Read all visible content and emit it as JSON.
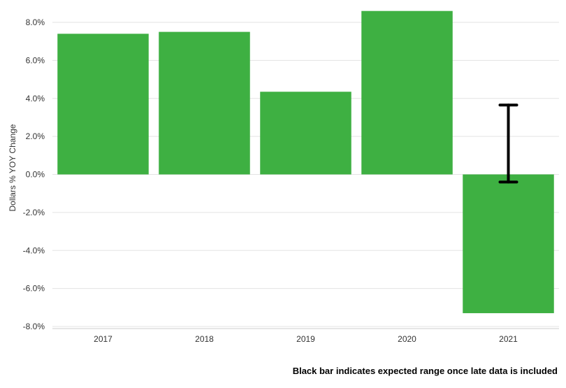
{
  "chart_data": {
    "type": "bar",
    "categories": [
      "2017",
      "2018",
      "2019",
      "2020",
      "2021"
    ],
    "values": [
      7.4,
      7.5,
      4.35,
      8.6,
      -7.3
    ],
    "ylabel": "Dollars % YOY Change",
    "ylim": [
      -8,
      8
    ],
    "yticks": [
      "8.0%",
      "6.0%",
      "4.0%",
      "2.0%",
      "0.0%",
      "-2.0%",
      "-4.0%",
      "-6.0%",
      "-8.0%"
    ],
    "error_range": {
      "category": "2021",
      "low": -0.4,
      "high": 3.65
    },
    "grid": true,
    "bar_color": "#3eb042",
    "error_bar_color": "#000000"
  },
  "annotation": "Black bar indicates expected range once late data is included"
}
